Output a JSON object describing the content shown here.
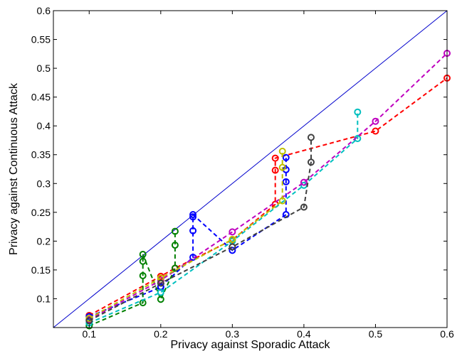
{
  "chart_data": {
    "type": "scatter",
    "title": "",
    "xlabel": "Privacy against Sporadic Attack",
    "ylabel": "Privacy against Continuous Attack",
    "xlim": [
      0.05,
      0.6
    ],
    "ylim": [
      0.05,
      0.6
    ],
    "xticks": [
      "0.1",
      "0.2",
      "0.3",
      "0.4",
      "0.5",
      "0.6"
    ],
    "yticks": [
      "0.1",
      "0.15",
      "0.2",
      "0.25",
      "0.3",
      "0.35",
      "0.4",
      "0.45",
      "0.5",
      "0.55",
      "0.6"
    ],
    "xtick_values": [
      0.1,
      0.2,
      0.3,
      0.4,
      0.5,
      0.6
    ],
    "ytick_values": [
      0.1,
      0.15,
      0.2,
      0.25,
      0.3,
      0.35,
      0.4,
      0.45,
      0.5,
      0.55,
      0.6
    ],
    "grid": false,
    "box": true,
    "reference_line": {
      "x": [
        0.05,
        0.6
      ],
      "y": [
        0.05,
        0.6
      ],
      "color": "#0000cc",
      "style": "solid"
    },
    "series": [
      {
        "color": "#ff0000",
        "points": [
          [
            0.1,
            0.071
          ],
          [
            0.2,
            0.139
          ],
          [
            0.22,
            0.153
          ],
          [
            0.3,
            0.202
          ],
          [
            0.36,
            0.264
          ],
          [
            0.36,
            0.323
          ],
          [
            0.36,
            0.344
          ],
          [
            0.5,
            0.391
          ],
          [
            0.6,
            0.483
          ]
        ]
      },
      {
        "color": "#0000ff",
        "points": [
          [
            0.1,
            0.069
          ],
          [
            0.2,
            0.12
          ],
          [
            0.2,
            0.121
          ],
          [
            0.245,
            0.172
          ],
          [
            0.245,
            0.218
          ],
          [
            0.245,
            0.242
          ],
          [
            0.245,
            0.246
          ],
          [
            0.3,
            0.184
          ],
          [
            0.375,
            0.246
          ],
          [
            0.375,
            0.303
          ],
          [
            0.375,
            0.324
          ],
          [
            0.375,
            0.345
          ]
        ]
      },
      {
        "color": "#008000",
        "points": [
          [
            0.1,
            0.053
          ],
          [
            0.175,
            0.093
          ],
          [
            0.175,
            0.14
          ],
          [
            0.175,
            0.165
          ],
          [
            0.175,
            0.177
          ],
          [
            0.2,
            0.099
          ],
          [
            0.22,
            0.153
          ],
          [
            0.22,
            0.193
          ],
          [
            0.22,
            0.217
          ]
        ]
      },
      {
        "color": "#00bfbf",
        "points": [
          [
            0.1,
            0.058
          ],
          [
            0.2,
            0.111
          ],
          [
            0.3,
            0.2
          ],
          [
            0.4,
            0.297
          ],
          [
            0.475,
            0.378
          ],
          [
            0.475,
            0.424
          ]
        ]
      },
      {
        "color": "#bf00bf",
        "points": [
          [
            0.1,
            0.064
          ],
          [
            0.2,
            0.132
          ],
          [
            0.3,
            0.216
          ],
          [
            0.4,
            0.302
          ],
          [
            0.5,
            0.408
          ],
          [
            0.6,
            0.526
          ]
        ]
      },
      {
        "color": "#bfbf00",
        "points": [
          [
            0.1,
            0.066
          ],
          [
            0.2,
            0.136
          ],
          [
            0.3,
            0.203
          ],
          [
            0.37,
            0.27
          ],
          [
            0.37,
            0.328
          ],
          [
            0.37,
            0.356
          ]
        ]
      },
      {
        "color": "#404040",
        "points": [
          [
            0.1,
            0.062
          ],
          [
            0.2,
            0.127
          ],
          [
            0.3,
            0.19
          ],
          [
            0.4,
            0.259
          ],
          [
            0.41,
            0.337
          ],
          [
            0.41,
            0.38
          ]
        ]
      }
    ]
  }
}
